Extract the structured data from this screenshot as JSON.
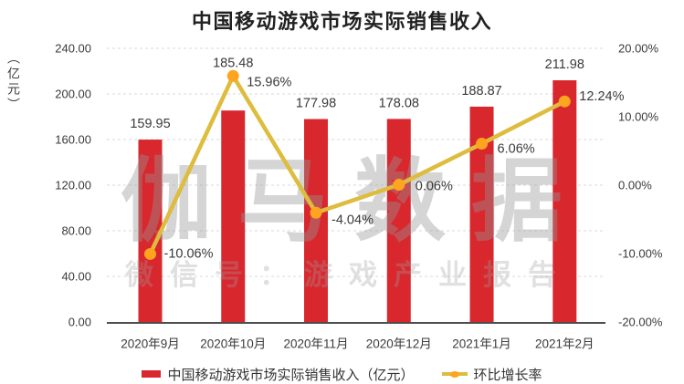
{
  "title": "中国移动游戏市场实际销售收入",
  "watermark": {
    "line1": "伽马数据",
    "line2": "微信号：游戏产业报告"
  },
  "chart_data": {
    "type": "combo-bar-line",
    "title": "中国移动游戏市场实际销售收入",
    "categories": [
      "2020年9月",
      "2020年10月",
      "2020年11月",
      "2020年12月",
      "2021年1月",
      "2021年2月"
    ],
    "series": [
      {
        "name": "中国移动游戏市场实际销售收入（亿元）",
        "type": "bar",
        "axis": "left",
        "values": [
          159.95,
          185.48,
          177.98,
          178.08,
          188.87,
          211.98
        ],
        "labels": [
          "159.95",
          "185.48",
          "177.98",
          "178.08",
          "188.87",
          "211.98"
        ],
        "color": "#D9272E"
      },
      {
        "name": "环比增长率",
        "type": "line",
        "axis": "right",
        "values": [
          -10.06,
          15.96,
          -4.04,
          0.06,
          6.06,
          12.24
        ],
        "labels": [
          "-10.06%",
          "15.96%",
          "-4.04%",
          "0.06%",
          "6.06%",
          "12.24%"
        ],
        "color": "#DDBC3E",
        "marker_color": "#FFA41E"
      }
    ],
    "left_axis": {
      "title": "（亿元）",
      "min": 0,
      "max": 240,
      "step": 40,
      "ticks": [
        "240.00",
        "200.00",
        "160.00",
        "120.00",
        "80.00",
        "40.00",
        "0.00"
      ]
    },
    "right_axis": {
      "min": -20,
      "max": 20,
      "step": 10,
      "ticks": [
        "20.00%",
        "10.00%",
        "0.00%",
        "-10.00%",
        "-20.00%"
      ]
    },
    "grid": "horizontal-dashed",
    "legend_position": "bottom"
  },
  "colors": {
    "bar": "#D9272E",
    "line": "#DDBC3E",
    "marker": "#FFA41E",
    "grid": "#D9D9D9",
    "axis_line": "#4D4D4D",
    "text": "#3a3a3a",
    "watermark1": "rgba(150,150,150,0.40)",
    "watermark2": "rgba(160,160,160,0.32)"
  }
}
